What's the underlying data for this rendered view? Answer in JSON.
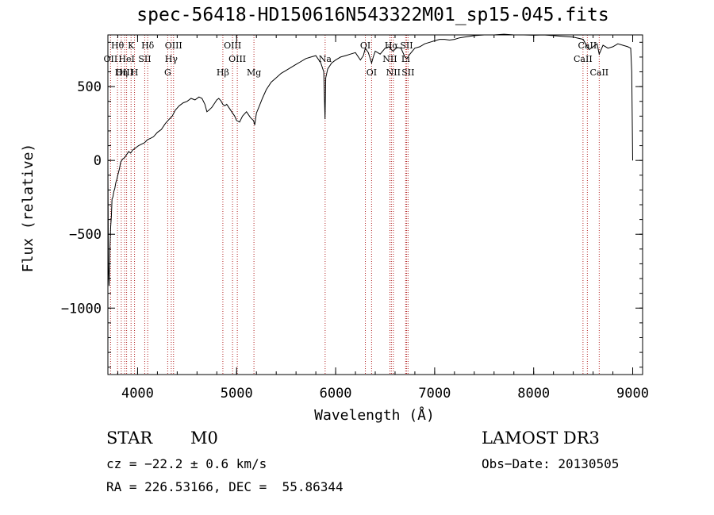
{
  "chart_data": {
    "type": "line",
    "title": "spec-56418-HD150616N543322M01_sp15-045.fits",
    "xlabel": "Wavelength (Å)",
    "ylabel": "Flux (relative)",
    "xlim": [
      3700,
      9100
    ],
    "ylim": [
      -1450,
      850
    ],
    "xticks": [
      4000,
      5000,
      6000,
      7000,
      8000,
      9000
    ],
    "xtick_labels": [
      "4000",
      "5000",
      "6000",
      "7000",
      "8000",
      "9000"
    ],
    "yticks": [
      -1000,
      -500,
      0,
      500
    ],
    "ytick_labels": [
      "−1000",
      "−500",
      "0",
      "500"
    ],
    "series": [
      {
        "color": "#000000",
        "x": [
          3700,
          3705,
          3712,
          3720,
          3728,
          3735,
          3742,
          3750,
          3760,
          3770,
          3780,
          3790,
          3800,
          3815,
          3830,
          3850,
          3870,
          3890,
          3910,
          3930,
          3950,
          3970,
          3990,
          4010,
          4040,
          4070,
          4100,
          4130,
          4160,
          4200,
          4240,
          4280,
          4320,
          4350,
          4380,
          4420,
          4460,
          4500,
          4540,
          4580,
          4620,
          4650,
          4680,
          4700,
          4720,
          4750,
          4780,
          4800,
          4820,
          4840,
          4861,
          4880,
          4900,
          4920,
          4950,
          4980,
          5000,
          5030,
          5060,
          5100,
          5140,
          5170,
          5183,
          5200,
          5230,
          5260,
          5300,
          5350,
          5400,
          5450,
          5500,
          5550,
          5600,
          5650,
          5700,
          5750,
          5800,
          5850,
          5880,
          5893,
          5900,
          5920,
          5960,
          6000,
          6050,
          6100,
          6150,
          6200,
          6250,
          6280,
          6300,
          6330,
          6363,
          6380,
          6400,
          6450,
          6500,
          6540,
          6563,
          6580,
          6620,
          6660,
          6700,
          6720,
          6750,
          6800,
          6850,
          6900,
          6950,
          7000,
          7050,
          7100,
          7150,
          7200,
          7250,
          7300,
          7400,
          7500,
          7600,
          7700,
          7800,
          7900,
          8000,
          8100,
          8200,
          8300,
          8400,
          8500,
          8540,
          8560,
          8600,
          8640,
          8662,
          8700,
          8750,
          8800,
          8850,
          8900,
          8950,
          8980,
          8990,
          9000
        ],
        "values": [
          0,
          -700,
          -850,
          -600,
          -450,
          -380,
          -260,
          -250,
          -210,
          -190,
          -150,
          -130,
          -100,
          -60,
          -10,
          10,
          20,
          40,
          60,
          50,
          70,
          80,
          90,
          100,
          110,
          120,
          140,
          150,
          160,
          190,
          210,
          250,
          280,
          300,
          340,
          370,
          390,
          400,
          420,
          410,
          430,
          420,
          380,
          330,
          340,
          360,
          390,
          410,
          420,
          405,
          380,
          370,
          380,
          360,
          330,
          300,
          270,
          260,
          300,
          330,
          290,
          270,
          240,
          320,
          370,
          420,
          480,
          530,
          560,
          590,
          610,
          630,
          650,
          670,
          690,
          700,
          710,
          660,
          600,
          280,
          560,
          620,
          660,
          680,
          700,
          710,
          720,
          730,
          680,
          710,
          760,
          730,
          660,
          700,
          740,
          720,
          760,
          770,
          750,
          740,
          765,
          760,
          700,
          690,
          720,
          760,
          770,
          790,
          800,
          810,
          820,
          820,
          815,
          820,
          830,
          835,
          845,
          850,
          850,
          855,
          850,
          850,
          848,
          850,
          845,
          840,
          835,
          820,
          770,
          750,
          770,
          790,
          720,
          780,
          760,
          770,
          790,
          780,
          770,
          760,
          600,
          0
        ]
      }
    ],
    "line_markers": [
      {
        "label": "Hθ",
        "x": 3797,
        "row": 0
      },
      {
        "label": "OII",
        "x": 3727,
        "row": 1
      },
      {
        "label": "OIII",
        "x": 3869,
        "row": 2
      },
      {
        "label": "K",
        "x": 3934,
        "row": 0
      },
      {
        "label": "HeI",
        "x": 3889,
        "row": 1
      },
      {
        "label": "Hη",
        "x": 3835,
        "row": 2
      },
      {
        "label": "Hδ",
        "x": 4102,
        "row": 0
      },
      {
        "label": "SII",
        "x": 4072,
        "row": 1
      },
      {
        "label": "H",
        "x": 3969,
        "row": 2
      },
      {
        "label": "OIII",
        "x": 4363,
        "row": 0
      },
      {
        "label": "Hγ",
        "x": 4340,
        "row": 1
      },
      {
        "label": "G",
        "x": 4304,
        "row": 2
      },
      {
        "label": "OIII",
        "x": 4959,
        "row": 0
      },
      {
        "label": "OIII",
        "x": 5007,
        "row": 1
      },
      {
        "label": "Hβ",
        "x": 4861,
        "row": 2
      },
      {
        "label": "Mg",
        "x": 5175,
        "row": 2
      },
      {
        "label": "Na",
        "x": 5894,
        "row": 1
      },
      {
        "label": "OI",
        "x": 6300,
        "row": 0
      },
      {
        "label": "OI",
        "x": 6363,
        "row": 2
      },
      {
        "label": "Hα",
        "x": 6563,
        "row": 0
      },
      {
        "label": "SII",
        "x": 6716,
        "row": 0
      },
      {
        "label": "NII",
        "x": 6548,
        "row": 1
      },
      {
        "label": "Li",
        "x": 6707,
        "row": 1
      },
      {
        "label": "NII",
        "x": 6583,
        "row": 2
      },
      {
        "label": "SII",
        "x": 6731,
        "row": 2
      },
      {
        "label": "CaII",
        "x": 8542,
        "row": 0
      },
      {
        "label": "CaII",
        "x": 8498,
        "row": 1
      },
      {
        "label": "CaII",
        "x": 8662,
        "row": 2
      }
    ],
    "grid": false,
    "colors": {
      "spectrum": "#000000",
      "markers": "#b22222"
    }
  },
  "info": {
    "object_class": "STAR",
    "subclass": "M0",
    "survey": "LAMOST DR3",
    "cz": "cz = −22.2 ± 0.6 km/s",
    "obs_date": "Obs−Date: 20130505",
    "coords": "RA = 226.53166, DEC =  55.86344"
  }
}
